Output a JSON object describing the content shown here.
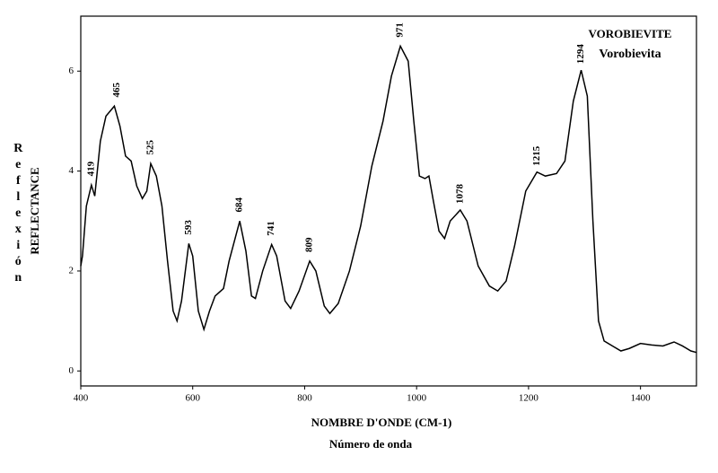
{
  "chart_data": {
    "type": "line",
    "title": "VOROBIEVITE",
    "subtitle": "Vorobievita",
    "x_label": "NOMBRE D'ONDE (CM-1)",
    "x_label_2": "Número de onda",
    "y_label": "REFLECTANCE",
    "y_label_2": "Reflexión",
    "x": [
      400,
      403,
      410,
      419,
      425,
      435,
      445,
      460,
      470,
      480,
      490,
      500,
      510,
      518,
      525,
      535,
      545,
      555,
      565,
      572,
      580,
      593,
      600,
      610,
      620,
      630,
      640,
      655,
      665,
      684,
      695,
      705,
      712,
      725,
      741,
      750,
      765,
      775,
      790,
      809,
      820,
      835,
      845,
      860,
      880,
      900,
      920,
      940,
      955,
      971,
      985,
      995,
      1005,
      1015,
      1022,
      1030,
      1040,
      1050,
      1060,
      1078,
      1090,
      1110,
      1130,
      1145,
      1160,
      1175,
      1195,
      1215,
      1230,
      1250,
      1265,
      1280,
      1294,
      1305,
      1315,
      1325,
      1335,
      1350,
      1365,
      1380,
      1400,
      1420,
      1440,
      1460,
      1475,
      1490,
      1500
    ],
    "series": [
      {
        "name": "VOROBIEVITE",
        "color": "#000000",
        "values": [
          2.1,
          2.3,
          3.3,
          3.72,
          3.5,
          4.6,
          5.1,
          5.3,
          4.9,
          4.3,
          4.2,
          3.7,
          3.45,
          3.6,
          4.15,
          3.9,
          3.3,
          2.2,
          1.2,
          1.0,
          1.4,
          2.55,
          2.3,
          1.2,
          0.83,
          1.2,
          1.5,
          1.65,
          2.2,
          3.0,
          2.4,
          1.5,
          1.45,
          2.0,
          2.53,
          2.3,
          1.4,
          1.25,
          1.6,
          2.2,
          2.0,
          1.3,
          1.15,
          1.35,
          2.0,
          2.9,
          4.1,
          5.0,
          5.9,
          6.5,
          6.2,
          5.0,
          3.9,
          3.85,
          3.9,
          3.4,
          2.8,
          2.65,
          3.0,
          3.22,
          3.0,
          2.1,
          1.7,
          1.6,
          1.8,
          2.5,
          3.6,
          3.98,
          3.9,
          3.95,
          4.2,
          5.4,
          6.02,
          5.5,
          3.0,
          1.0,
          0.6,
          0.5,
          0.4,
          0.45,
          0.55,
          0.52,
          0.5,
          0.58,
          0.5,
          0.4,
          0.37
        ]
      }
    ],
    "peak_labels": [
      419,
      465,
      525,
      593,
      684,
      741,
      809,
      971,
      1078,
      1215,
      1294
    ],
    "xlim": [
      400,
      1500
    ],
    "xticks": [
      400,
      600,
      800,
      1000,
      1200,
      1400
    ],
    "ylim": [
      -0.3,
      7.1
    ],
    "yticks": [
      0,
      2,
      4,
      6
    ],
    "grid": false
  }
}
